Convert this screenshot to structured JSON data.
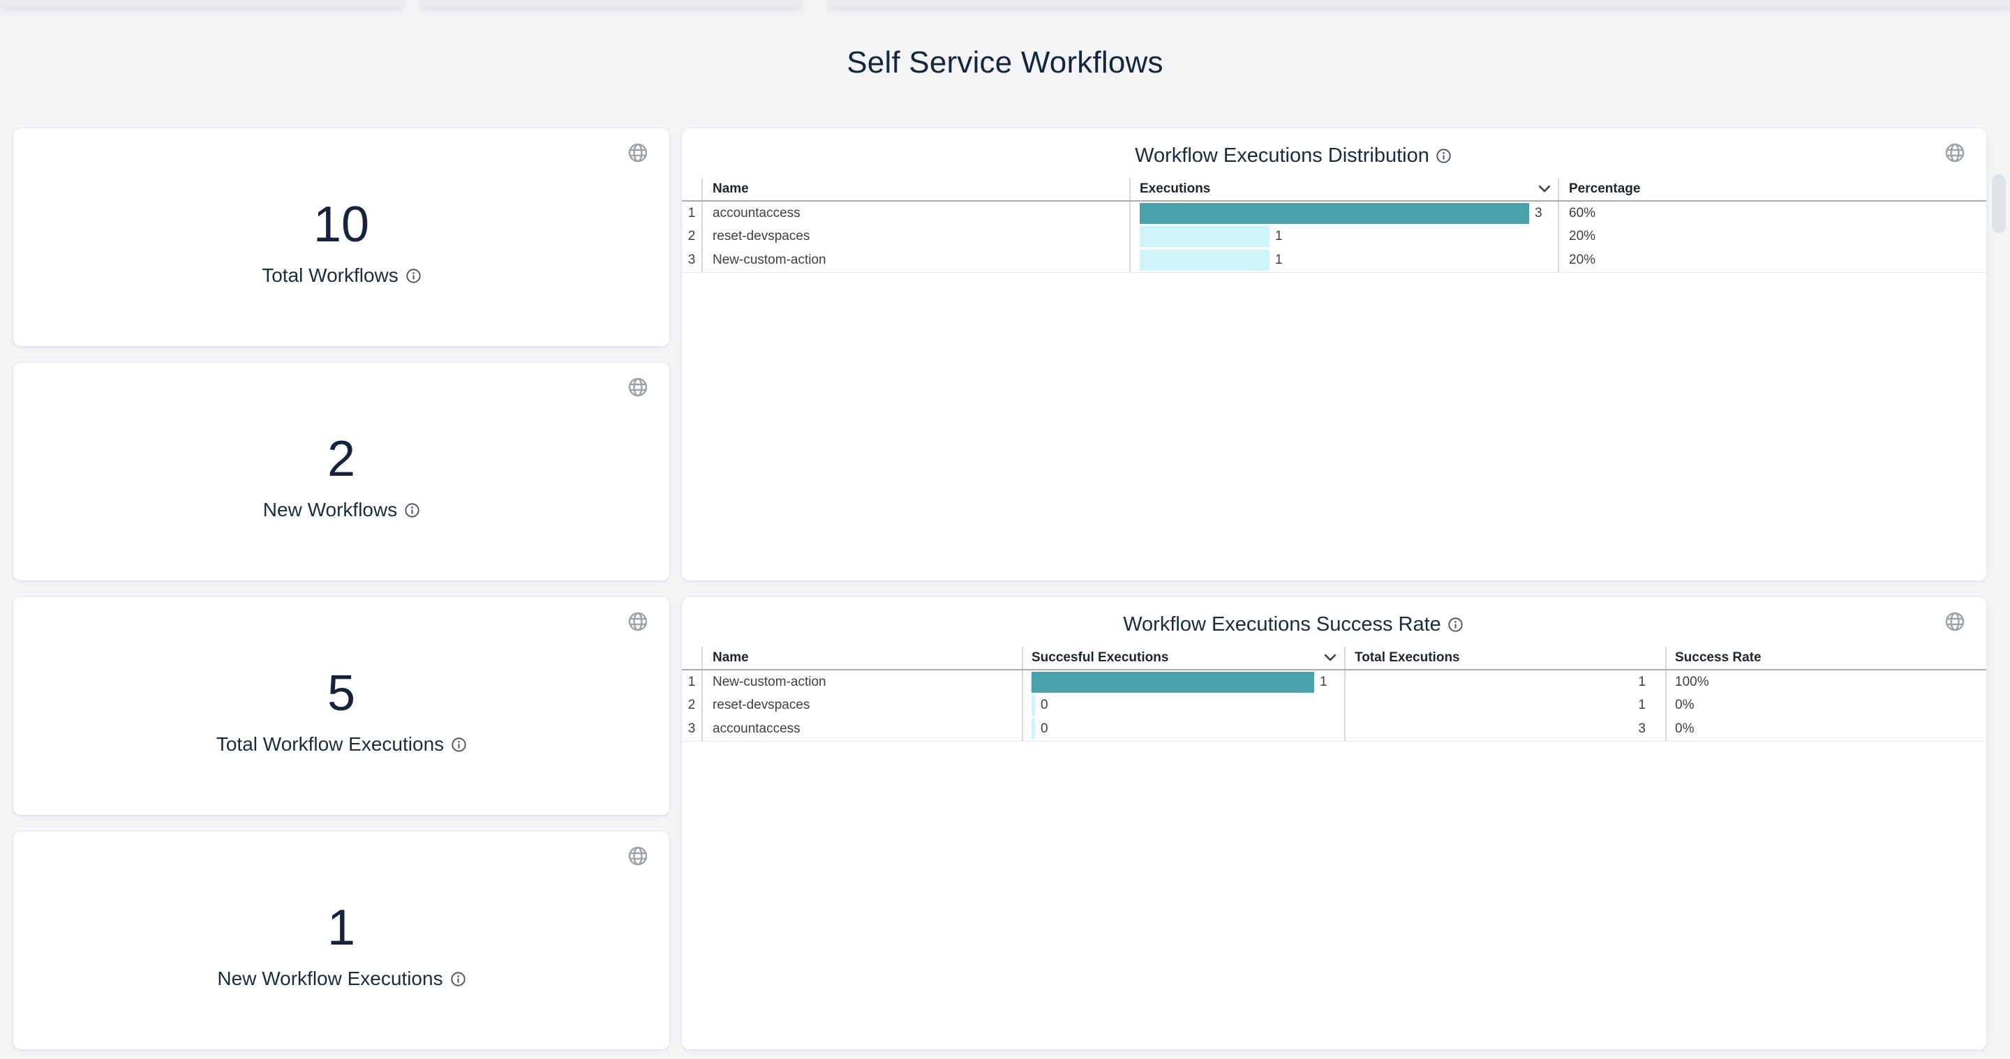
{
  "page": {
    "title": "Self Service Workflows"
  },
  "colors": {
    "bar_primary": "#49A1AC",
    "bar_secondary": "#CDF5FB",
    "row_alt": "#F0F1F1",
    "heading_text": "#16243C"
  },
  "stat_cards": [
    {
      "value": 10,
      "label": "Total Workflows"
    },
    {
      "value": 2,
      "label": "New Workflows"
    },
    {
      "value": 5,
      "label": "Total Workflow Executions"
    },
    {
      "value": 1,
      "label": "New Workflow Executions"
    }
  ],
  "chart_data": [
    {
      "type": "table",
      "title": "Workflow Executions Distribution",
      "columns": [
        "Name",
        "Executions",
        "Percentage"
      ],
      "sorted_by": "Executions",
      "max_executions": 3,
      "rows": [
        {
          "index": 1,
          "name": "accountaccess",
          "executions": 3,
          "percentage": "60%"
        },
        {
          "index": 2,
          "name": "reset-devspaces",
          "executions": 1,
          "percentage": "20%"
        },
        {
          "index": 3,
          "name": "New-custom-action",
          "executions": 1,
          "percentage": "20%"
        }
      ]
    },
    {
      "type": "table",
      "title": "Workflow Executions Success Rate",
      "columns": [
        "Name",
        "Succesful Executions",
        "Total Executions",
        "Success Rate"
      ],
      "sorted_by": "Succesful Executions",
      "max_successful": 1,
      "rows": [
        {
          "index": 1,
          "name": "New-custom-action",
          "successful": 1,
          "total": 1,
          "rate": "100%"
        },
        {
          "index": 2,
          "name": "reset-devspaces",
          "successful": 0,
          "total": 1,
          "rate": "0%"
        },
        {
          "index": 3,
          "name": "accountaccess",
          "successful": 0,
          "total": 3,
          "rate": "0%"
        }
      ]
    }
  ]
}
